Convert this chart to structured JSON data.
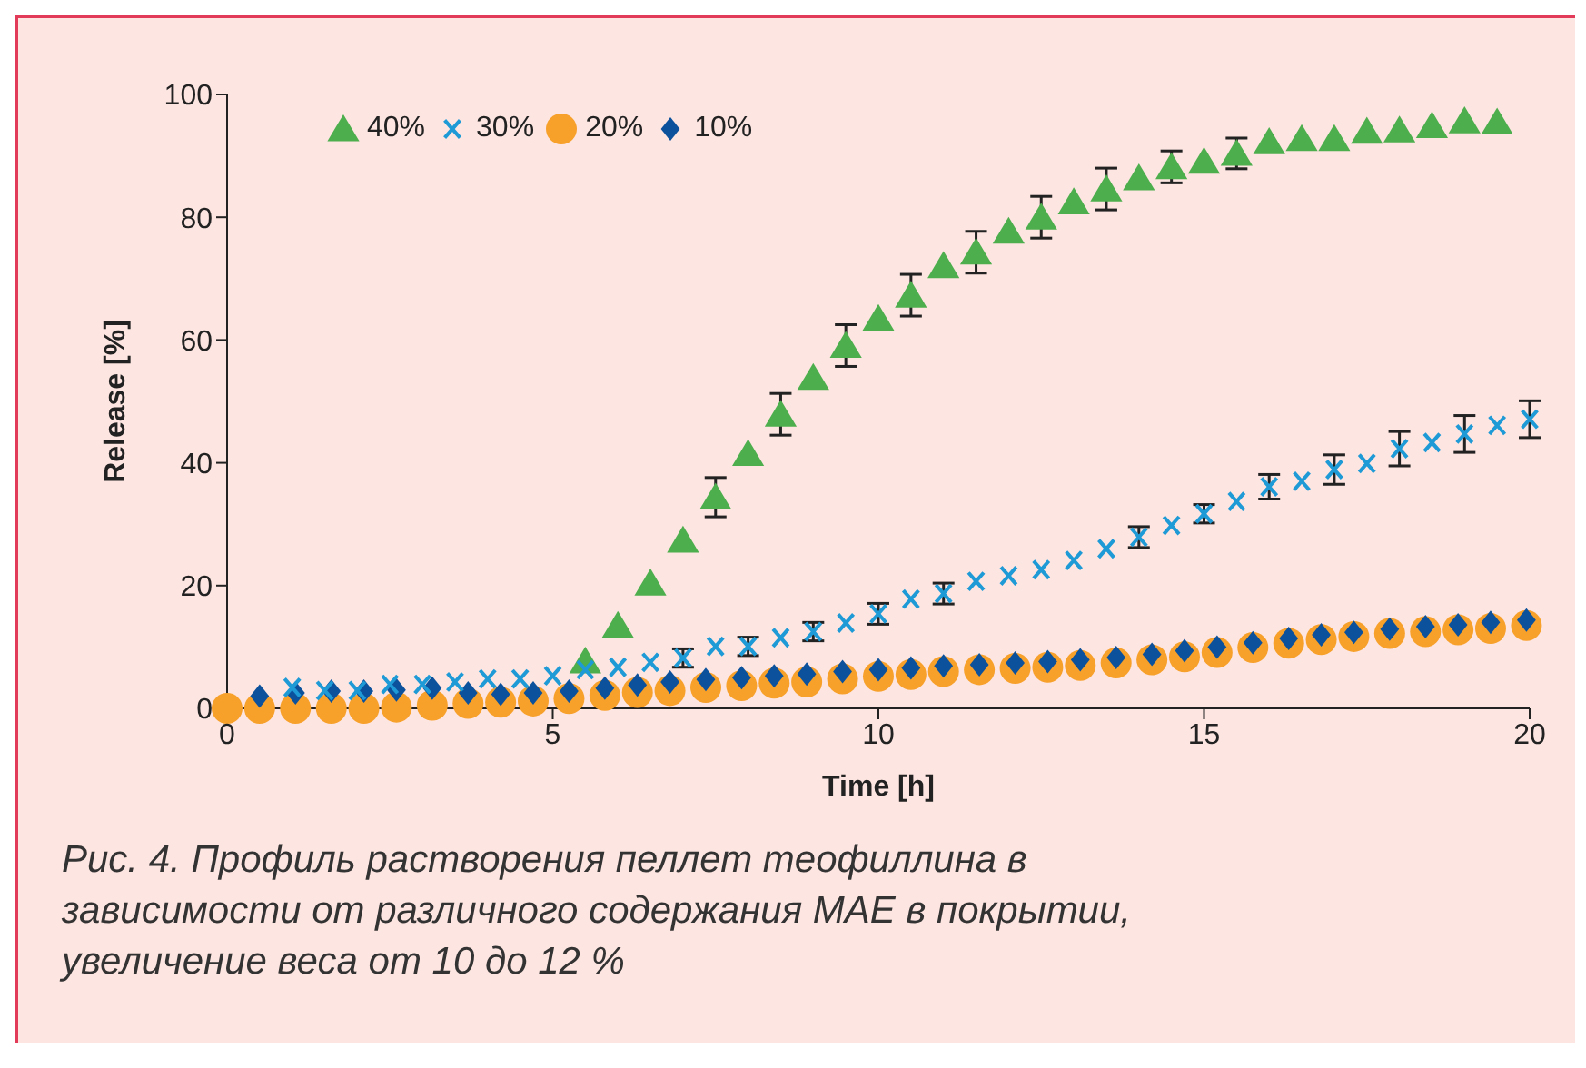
{
  "chart_data": {
    "type": "scatter",
    "xlabel": "Time [h]",
    "ylabel": "Release [%]",
    "xlim": [
      0,
      20
    ],
    "xticks": [
      0,
      5,
      10,
      15,
      20
    ],
    "ylim": [
      0,
      100
    ],
    "yticks": [
      0,
      20,
      40,
      60,
      80,
      100
    ],
    "legend": "top left",
    "annotations": [
      "Рис. 4. Профиль растворения пеллет теофиллина в зависимости от различного содержания МАЕ в покрытии, увеличение веса от 10 до 12 %"
    ],
    "series": [
      {
        "name": "40%",
        "color": "#4cae4c",
        "marker": "triangle",
        "x": [
          5.5,
          6,
          6.5,
          7,
          7.5,
          8,
          8.5,
          9,
          9.5,
          10,
          10.5,
          11,
          11.5,
          12,
          12.5,
          13,
          13.5,
          14,
          14.5,
          15,
          15.5,
          16,
          16.5,
          17,
          17.5,
          18,
          18.5,
          19,
          19.5
        ],
        "values": [
          7.7,
          13.5,
          20.4,
          27.4,
          34.4,
          41.5,
          47.9,
          53.9,
          59.1,
          63.5,
          67.3,
          72.1,
          74.3,
          77.7,
          80,
          82.5,
          84.6,
          86.4,
          88.2,
          89.1,
          90.4,
          92.3,
          92.8,
          92.8,
          94,
          94.2,
          94.9,
          95.7,
          95.5
        ],
        "errors": [
          null,
          null,
          null,
          null,
          3.2,
          null,
          3.4,
          null,
          3.4,
          null,
          3.4,
          null,
          3.4,
          null,
          3.4,
          null,
          3.4,
          null,
          2.6,
          null,
          2.5,
          null,
          null,
          null,
          null,
          null,
          null,
          null,
          null
        ]
      },
      {
        "name": "30%",
        "color": "#1e9ad6",
        "marker": "cross",
        "x": [
          1,
          1.5,
          2,
          2.5,
          3,
          3.5,
          4,
          4.5,
          5,
          5.5,
          6,
          6.5,
          7,
          7.5,
          8,
          8.5,
          9,
          9.5,
          10,
          10.5,
          11,
          11.5,
          12,
          12.5,
          13,
          13.5,
          14,
          14.5,
          15,
          15.5,
          16,
          16.5,
          17,
          17.5,
          18,
          18.5,
          19,
          19.5,
          20
        ],
        "values": [
          3.4,
          2.9,
          2.9,
          3.9,
          3.9,
          4.3,
          4.8,
          4.8,
          5.3,
          6.3,
          6.7,
          7.5,
          8.2,
          10.1,
          10.1,
          11.5,
          12.5,
          13.9,
          15.4,
          17.8,
          18.7,
          20.7,
          21.6,
          22.6,
          24.1,
          26,
          27.9,
          29.8,
          31.7,
          33.7,
          36.1,
          37,
          38.9,
          39.9,
          42.3,
          43.3,
          44.7,
          46.1,
          47.1
        ],
        "errors": [
          null,
          null,
          null,
          null,
          null,
          null,
          null,
          null,
          null,
          null,
          null,
          null,
          1.5,
          null,
          1.5,
          null,
          1.5,
          null,
          1.7,
          null,
          1.7,
          null,
          null,
          null,
          null,
          null,
          1.7,
          null,
          1.5,
          null,
          2,
          null,
          2.4,
          null,
          2.8,
          null,
          3,
          null,
          3
        ]
      },
      {
        "name": "20%",
        "color": "#f7a02a",
        "marker": "circle",
        "x": [
          0,
          0.5,
          1.05,
          1.6,
          2.1,
          2.6,
          3.15,
          3.7,
          4.2,
          4.7,
          5.25,
          5.8,
          6.3,
          6.8,
          7.35,
          7.9,
          8.4,
          8.9,
          9.45,
          10,
          10.5,
          11,
          11.55,
          12.1,
          12.6,
          13.1,
          13.65,
          14.2,
          14.7,
          15.2,
          15.75,
          16.3,
          16.8,
          17.3,
          17.85,
          18.4,
          18.9,
          19.4,
          19.95
        ],
        "values": [
          0,
          0,
          0,
          0,
          0,
          0.2,
          0.5,
          0.8,
          1,
          1.2,
          1.6,
          2.1,
          2.6,
          2.9,
          3.4,
          3.7,
          4.1,
          4.3,
          4.8,
          5.2,
          5.5,
          6,
          6.3,
          6.5,
          6.7,
          7,
          7.4,
          7.9,
          8.4,
          9.1,
          9.9,
          10.6,
          11.2,
          11.7,
          12.2,
          12.5,
          12.8,
          13,
          13.5
        ]
      },
      {
        "name": "10%",
        "color": "#0b519c",
        "marker": "diamond",
        "x": [
          0.5,
          1.05,
          1.6,
          2.1,
          2.6,
          3.15,
          3.7,
          4.2,
          4.7,
          5.25,
          5.8,
          6.3,
          6.8,
          7.35,
          7.9,
          8.4,
          8.9,
          9.45,
          10,
          10.5,
          11,
          11.55,
          12.1,
          12.6,
          13.1,
          13.65,
          14.2,
          14.7,
          15.2,
          15.75,
          16.3,
          16.8,
          17.3,
          17.85,
          18.4,
          18.9,
          19.4,
          19.95
        ],
        "values": [
          2,
          2.5,
          2.8,
          2.8,
          3,
          3.3,
          2.5,
          2.3,
          2.5,
          2.8,
          3.3,
          3.8,
          4.3,
          4.7,
          5,
          5.3,
          5.6,
          6,
          6.3,
          6.6,
          6.9,
          7.1,
          7.4,
          7.6,
          7.9,
          8.3,
          8.8,
          9.4,
          10,
          10.7,
          11.4,
          12,
          12.4,
          12.9,
          13.3,
          13.6,
          14,
          14.4
        ]
      }
    ]
  }
}
